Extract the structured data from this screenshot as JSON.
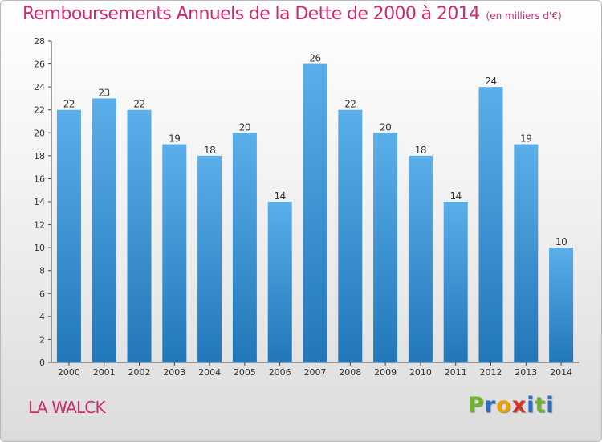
{
  "header": {
    "title": "Remboursements Annuels de la Dette de 2000 à 2014",
    "unit": "(en milliers d'€)"
  },
  "footer": {
    "city": "LA WALCK",
    "logo_letters": [
      "P",
      "r",
      "o",
      "x",
      "i",
      "t",
      "i"
    ]
  },
  "colors": {
    "title": "#d02a6c",
    "bar_top": "#5aaeea",
    "bar_bottom": "#2277b8",
    "logo": [
      "#6fb52c",
      "#2f6fc0",
      "#e8a400",
      "#d9302c",
      "#2f6fc0",
      "#6fb52c",
      "#2f6fc0"
    ]
  },
  "chart_data": {
    "type": "bar",
    "title": "Remboursements Annuels de la Dette de 2000 à 2014",
    "xlabel": "",
    "ylabel": "",
    "categories": [
      "2000",
      "2001",
      "2002",
      "2003",
      "2004",
      "2005",
      "2006",
      "2007",
      "2008",
      "2009",
      "2010",
      "2011",
      "2012",
      "2013",
      "2014"
    ],
    "values": [
      22,
      23,
      22,
      19,
      18,
      20,
      14,
      26,
      22,
      20,
      18,
      14,
      24,
      19,
      10
    ],
    "ylim": [
      0,
      28
    ],
    "yticks": [
      0,
      2,
      4,
      6,
      8,
      10,
      12,
      14,
      16,
      18,
      20,
      22,
      24,
      26,
      28
    ],
    "grid": false,
    "legend": "none",
    "data_labels": true
  }
}
